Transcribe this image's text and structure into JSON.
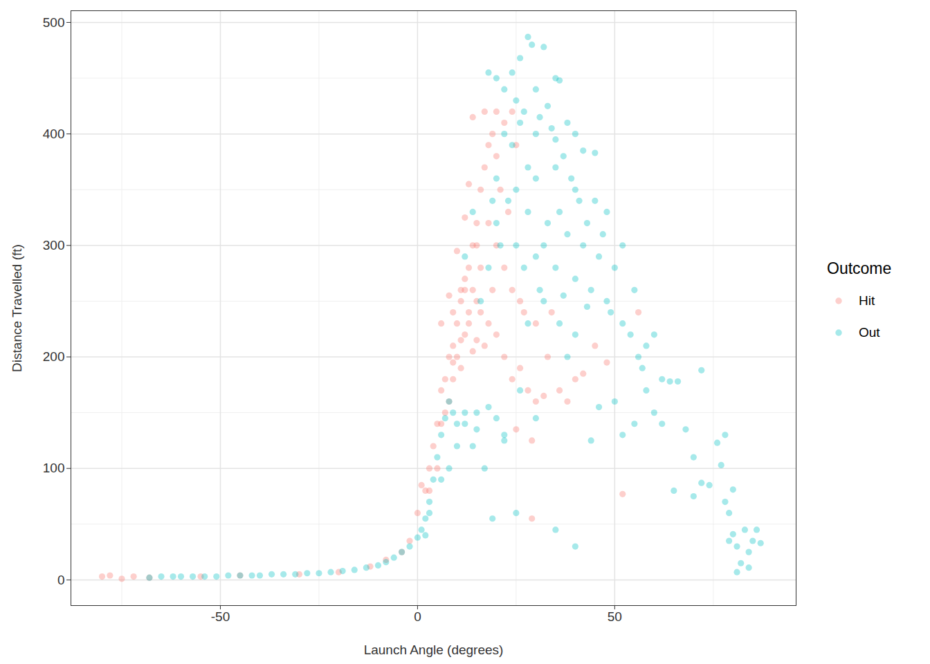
{
  "chart_data": {
    "type": "scatter",
    "xlabel": "Launch Angle (degrees)",
    "ylabel": "Distance Travelled (ft)",
    "legend_title": "Outcome",
    "legend": "right",
    "grid": true,
    "marker": "circle",
    "xlim": [
      -87.9,
      96
    ],
    "ylim": [
      -23,
      510.5
    ],
    "xticks": [
      -50,
      0,
      50
    ],
    "yticks": [
      0,
      100,
      200,
      300,
      400,
      500
    ],
    "series": [
      {
        "name": "Hit",
        "color": "#F8766D",
        "x": [
          -80,
          -78,
          -75,
          -72,
          -68,
          -55,
          -45,
          -30,
          -20,
          -12,
          -8,
          -4,
          -2,
          0,
          1,
          2,
          3,
          4,
          5,
          6,
          7,
          8,
          9,
          10,
          11,
          12,
          13,
          14,
          15,
          16,
          17,
          18,
          19,
          20,
          22,
          24,
          14,
          10,
          9,
          8,
          7,
          11,
          12,
          13,
          14,
          16,
          18,
          20,
          22,
          24,
          26,
          28,
          30,
          32,
          34,
          36,
          38,
          40,
          42,
          45,
          48,
          25,
          29,
          29,
          52,
          56,
          20,
          22,
          24,
          26,
          17,
          20,
          15,
          5,
          3,
          6,
          6,
          9,
          11,
          12,
          8,
          13,
          15,
          17,
          19,
          21,
          23,
          25,
          27,
          30,
          33,
          10,
          12,
          13,
          15,
          16,
          18,
          9,
          11,
          14
        ],
        "values": [
          3,
          4,
          1,
          3,
          2,
          3,
          4,
          5,
          7,
          12,
          18,
          25,
          35,
          60,
          85,
          80,
          100,
          120,
          140,
          170,
          180,
          200,
          210,
          230,
          250,
          260,
          280,
          300,
          320,
          350,
          370,
          390,
          400,
          420,
          410,
          420,
          415,
          200,
          180,
          160,
          150,
          190,
          220,
          240,
          260,
          240,
          230,
          220,
          200,
          180,
          190,
          170,
          160,
          165,
          240,
          170,
          160,
          180,
          185,
          210,
          195,
          135,
          125,
          55,
          77,
          240,
          300,
          280,
          260,
          250,
          420,
          380,
          250,
          100,
          80,
          140,
          230,
          240,
          260,
          270,
          255,
          230,
          215,
          210,
          260,
          350,
          330,
          390,
          240,
          230,
          200,
          295,
          325,
          355,
          300,
          280,
          320,
          195,
          215,
          205
        ]
      },
      {
        "name": "Out",
        "color": "#00BFC4",
        "x": [
          -68,
          -65,
          -62,
          -60,
          -57,
          -54,
          -51,
          -48,
          -45,
          -42,
          -40,
          -37,
          -34,
          -31,
          -28,
          -25,
          -22,
          -19,
          -16,
          -13,
          -10,
          -8,
          -6,
          -4,
          -2,
          0,
          1,
          2,
          3,
          4,
          5,
          6,
          7,
          8,
          9,
          10,
          12,
          15,
          18,
          20,
          22,
          25,
          14,
          19,
          35,
          40,
          18,
          20,
          22,
          24,
          26,
          28,
          29,
          32,
          35,
          36,
          30,
          25,
          27,
          33,
          38,
          40,
          42,
          45,
          22,
          24,
          30,
          35,
          20,
          25,
          30,
          35,
          40,
          45,
          48,
          28,
          33,
          38,
          42,
          46,
          50,
          52,
          55,
          25,
          30,
          35,
          40,
          44,
          48,
          52,
          54,
          56,
          58,
          60,
          62,
          64,
          58,
          60,
          62,
          55,
          52,
          50,
          46,
          44,
          65,
          68,
          70,
          72,
          74,
          70,
          76,
          78,
          77,
          78,
          79,
          80,
          80,
          81,
          82,
          83,
          84,
          85,
          86,
          87,
          81,
          84,
          79,
          72,
          66,
          40,
          38,
          36,
          32,
          28,
          26,
          30,
          22,
          17,
          15,
          12,
          16,
          18,
          14,
          12,
          20,
          10,
          8,
          6,
          3,
          2,
          26,
          31,
          34,
          37,
          39,
          41,
          43,
          47,
          36,
          32,
          28,
          23,
          21,
          19,
          27,
          31,
          37,
          43,
          49,
          57
        ],
        "values": [
          2,
          3,
          3,
          3,
          3,
          3,
          3,
          4,
          4,
          4,
          4,
          5,
          5,
          5,
          6,
          6,
          7,
          8,
          9,
          11,
          13,
          16,
          20,
          25,
          30,
          38,
          45,
          55,
          70,
          90,
          110,
          130,
          145,
          160,
          150,
          140,
          150,
          150,
          155,
          145,
          130,
          60,
          120,
          55,
          45,
          30,
          455,
          450,
          440,
          455,
          468,
          487,
          480,
          478,
          450,
          448,
          440,
          430,
          420,
          425,
          410,
          400,
          385,
          383,
          400,
          390,
          400,
          395,
          360,
          350,
          360,
          370,
          350,
          340,
          330,
          330,
          320,
          310,
          300,
          290,
          280,
          300,
          260,
          300,
          290,
          280,
          270,
          260,
          250,
          230,
          220,
          200,
          210,
          220,
          180,
          178,
          170,
          150,
          140,
          140,
          130,
          160,
          155,
          125,
          80,
          135,
          110,
          87,
          85,
          75,
          123,
          130,
          103,
          70,
          60,
          81,
          41,
          30,
          15,
          45,
          25,
          35,
          45,
          33,
          7,
          11,
          35,
          188,
          178,
          220,
          200,
          230,
          250,
          230,
          170,
          145,
          125,
          100,
          135,
          140,
          250,
          280,
          330,
          290,
          320,
          120,
          100,
          90,
          60,
          40,
          410,
          415,
          405,
          380,
          360,
          340,
          320,
          310,
          330,
          300,
          370,
          340,
          300,
          340,
          280,
          260,
          255,
          245,
          240,
          190
        ]
      }
    ]
  }
}
